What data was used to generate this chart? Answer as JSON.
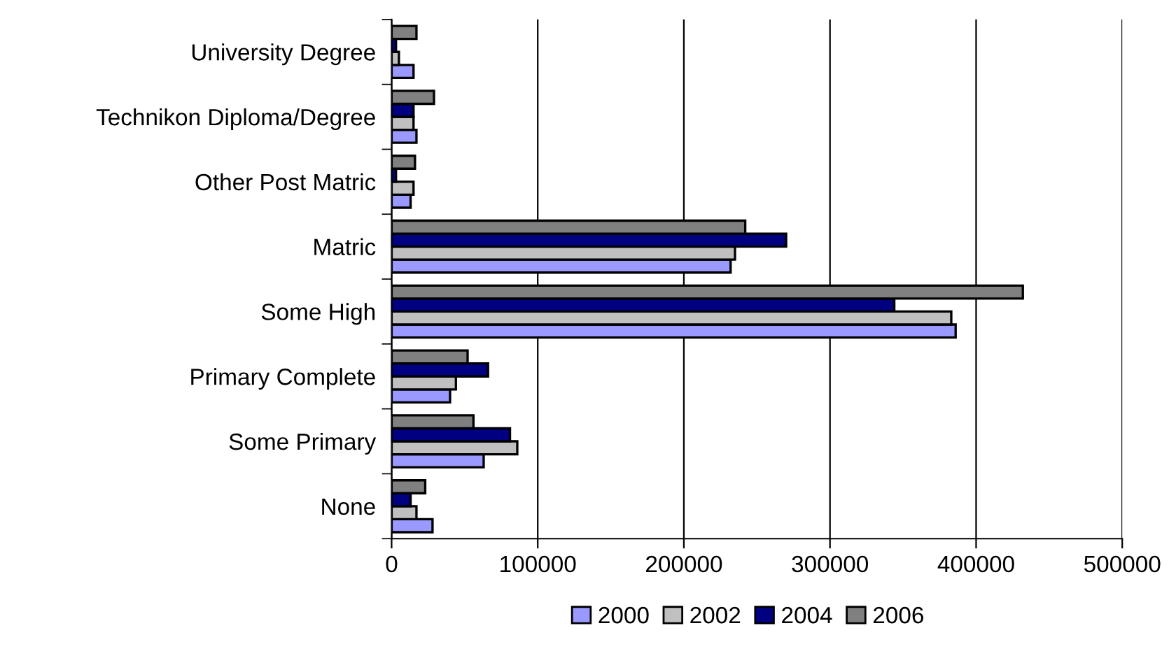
{
  "chart_data": {
    "type": "bar",
    "orientation": "horizontal",
    "categories": [
      "University Degree",
      "Technikon Diploma/Degree",
      "Other Post Matric",
      "Matric",
      "Some High",
      "Primary Complete",
      "Some Primary",
      "None"
    ],
    "series": [
      {
        "name": "2000",
        "color": "#9999ff",
        "values": [
          15000,
          17000,
          13000,
          232000,
          386000,
          40000,
          63000,
          28000
        ]
      },
      {
        "name": "2002",
        "color": "#c0c0c0",
        "values": [
          5000,
          15000,
          15000,
          235000,
          383000,
          44000,
          86000,
          17000
        ]
      },
      {
        "name": "2004",
        "color": "#000080",
        "values": [
          3000,
          15000,
          3000,
          270000,
          344000,
          66000,
          81000,
          13000
        ]
      },
      {
        "name": "2006",
        "color": "#808080",
        "values": [
          17000,
          29000,
          16000,
          242000,
          432000,
          52000,
          56000,
          23000
        ]
      }
    ],
    "xlim": [
      0,
      500000
    ],
    "xticks": [
      0,
      100000,
      200000,
      300000,
      400000,
      500000
    ],
    "grid": "x",
    "legend": "bottom"
  }
}
